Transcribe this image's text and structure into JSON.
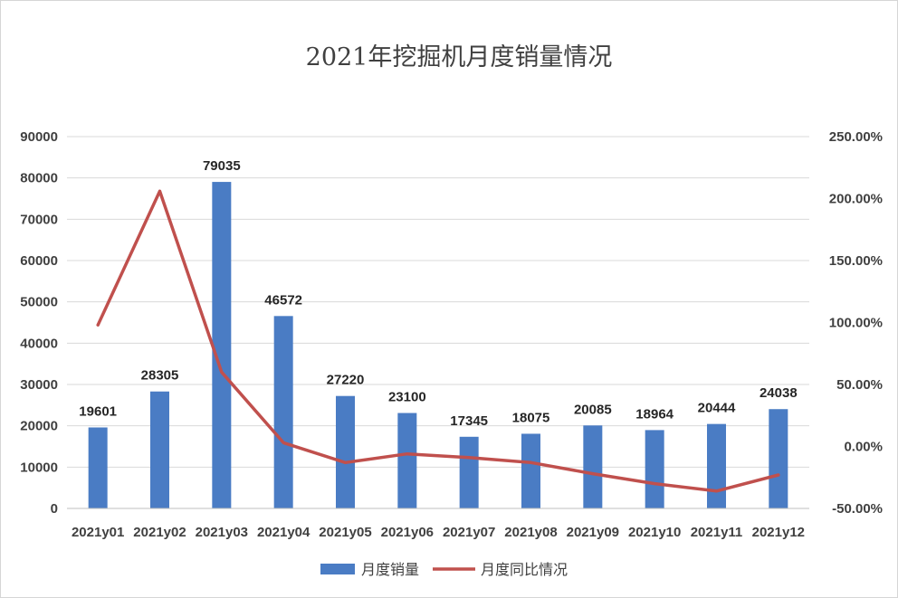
{
  "chart_data": {
    "type": "bar",
    "title": "2021年挖掘机月度销量情况",
    "xlabel": "",
    "ylabel": "",
    "categories": [
      "2021y01",
      "2021y02",
      "2021y03",
      "2021y04",
      "2021y05",
      "2021y06",
      "2021y07",
      "2021y08",
      "2021y09",
      "2021y10",
      "2021y11",
      "2021y12"
    ],
    "series": [
      {
        "name": "月度销量",
        "type": "bar",
        "axis": "left",
        "color": "#4a7cc4",
        "values": [
          19601,
          28305,
          79035,
          46572,
          27220,
          23100,
          17345,
          18075,
          20085,
          18964,
          20444,
          24038
        ],
        "data_labels": [
          "19601",
          "28305",
          "79035",
          "46572",
          "27220",
          "23100",
          "17345",
          "18075",
          "20085",
          "18964",
          "20444",
          "24038"
        ]
      },
      {
        "name": "月度同比情况",
        "type": "line",
        "axis": "right",
        "color": "#c0504d",
        "values": [
          0.98,
          2.06,
          0.6,
          0.03,
          -0.13,
          -0.06,
          -0.09,
          -0.13,
          -0.22,
          -0.3,
          -0.36,
          -0.23
        ]
      }
    ],
    "ylim_left": [
      0,
      90000
    ],
    "ylim_right": [
      -0.5,
      2.5
    ],
    "left_ticks": [
      "0",
      "10000",
      "20000",
      "30000",
      "40000",
      "50000",
      "60000",
      "70000",
      "80000",
      "90000"
    ],
    "right_ticks": [
      "-50.00%",
      "0.00%",
      "50.00%",
      "100.00%",
      "150.00%",
      "200.00%",
      "250.00%"
    ],
    "grid": true,
    "legend_position": "bottom"
  }
}
